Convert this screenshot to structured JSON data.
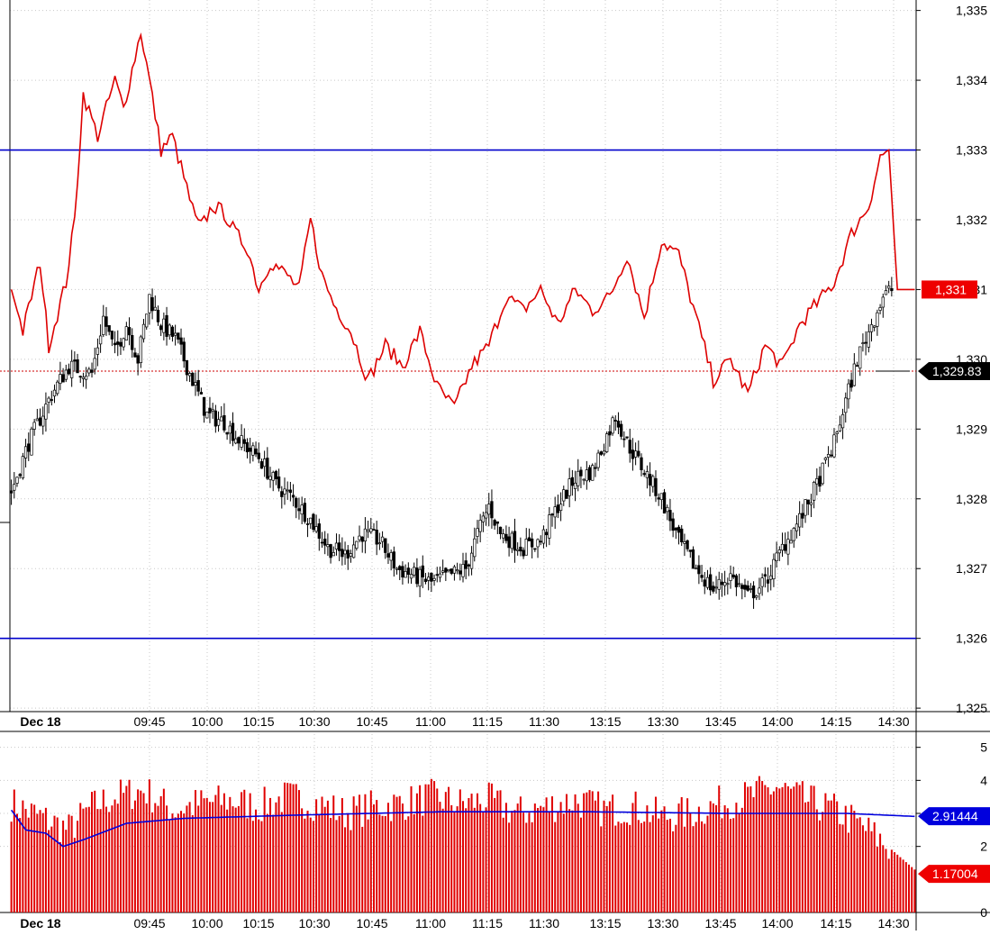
{
  "chart_data": [
    {
      "type": "candlestick",
      "panel": "price",
      "title": "",
      "xlabel": "",
      "ylabel": "",
      "ylim": [
        1324.95,
        1335.15
      ],
      "yticks": [
        "1,325",
        "1,326",
        "1,327",
        "1,328",
        "1,329",
        "1,330",
        "1,331",
        "1,332",
        "1,333",
        "1,334",
        "1,335"
      ],
      "ytick_values": [
        1325,
        1326,
        1327,
        1328,
        1329,
        1330,
        1331,
        1332,
        1333,
        1334,
        1335
      ],
      "xticks": [
        "Dec 18",
        "09:45",
        "10:00",
        "10:15",
        "10:30",
        "10:45",
        "11:00",
        "11:15",
        "11:30",
        "13:15",
        "13:30",
        "13:45",
        "14:00",
        "14:15",
        "14:30"
      ],
      "grid": true,
      "candle_anchors": [
        [
          0,
          1328.1
        ],
        [
          6,
          1328.8
        ],
        [
          14,
          1329.5
        ],
        [
          20,
          1329.9
        ],
        [
          28,
          1329.8
        ],
        [
          32,
          1330.6
        ],
        [
          36,
          1330.1
        ],
        [
          40,
          1330.5
        ],
        [
          44,
          1330.0
        ],
        [
          48,
          1330.9
        ],
        [
          52,
          1330.5
        ],
        [
          57,
          1330.3
        ],
        [
          62,
          1329.8
        ],
        [
          68,
          1329.2
        ],
        [
          74,
          1329.1
        ],
        [
          80,
          1328.8
        ],
        [
          86,
          1328.6
        ],
        [
          92,
          1328.2
        ],
        [
          98,
          1328.0
        ],
        [
          104,
          1327.7
        ],
        [
          110,
          1327.3
        ],
        [
          116,
          1327.2
        ],
        [
          122,
          1327.5
        ],
        [
          128,
          1327.4
        ],
        [
          134,
          1327.0
        ],
        [
          140,
          1326.9
        ],
        [
          146,
          1326.8
        ],
        [
          152,
          1326.9
        ],
        [
          158,
          1327.0
        ],
        [
          162,
          1327.5
        ],
        [
          166,
          1327.9
        ],
        [
          170,
          1327.5
        ],
        [
          174,
          1327.4
        ],
        [
          178,
          1327.3
        ],
        [
          184,
          1327.4
        ],
        [
          190,
          1327.9
        ],
        [
          196,
          1328.3
        ],
        [
          202,
          1328.4
        ],
        [
          206,
          1328.8
        ],
        [
          210,
          1329.2
        ],
        [
          214,
          1328.8
        ],
        [
          220,
          1328.4
        ],
        [
          226,
          1328.0
        ],
        [
          232,
          1327.4
        ],
        [
          238,
          1327.0
        ],
        [
          244,
          1326.7
        ],
        [
          250,
          1326.9
        ],
        [
          256,
          1326.6
        ],
        [
          262,
          1326.8
        ],
        [
          268,
          1327.3
        ],
        [
          274,
          1327.7
        ],
        [
          280,
          1328.2
        ],
        [
          286,
          1328.8
        ],
        [
          290,
          1329.4
        ],
        [
          294,
          1330.0
        ],
        [
          298,
          1330.4
        ],
        [
          303,
          1330.9
        ],
        [
          306,
          1331.0
        ]
      ],
      "reference_lines": [
        {
          "name": "upper-level",
          "value": 1333.0,
          "color": "#0000cc"
        },
        {
          "name": "lower-level",
          "value": 1326.0,
          "color": "#0000cc"
        },
        {
          "name": "last-price",
          "value": 1329.83,
          "color": "#cc0000",
          "style": "dotted"
        }
      ],
      "overlay_series": {
        "name": "",
        "color": "#dd0000",
        "scale": "separate",
        "anchors": [
          [
            0,
            1331.0
          ],
          [
            4,
            1330.4
          ],
          [
            10,
            1331.4
          ],
          [
            13,
            1330.2
          ],
          [
            19,
            1331.1
          ],
          [
            22,
            1332.0
          ],
          [
            25,
            1333.8
          ],
          [
            30,
            1333.2
          ],
          [
            36,
            1334.0
          ],
          [
            39,
            1333.6
          ],
          [
            45,
            1334.7
          ],
          [
            48,
            1334.0
          ],
          [
            52,
            1333.0
          ],
          [
            56,
            1333.2
          ],
          [
            60,
            1332.6
          ],
          [
            64,
            1332.0
          ],
          [
            66,
            1331.9
          ],
          [
            70,
            1332.2
          ],
          [
            74,
            1332.1
          ],
          [
            78,
            1331.8
          ],
          [
            82,
            1331.6
          ],
          [
            86,
            1331.0
          ],
          [
            90,
            1331.4
          ],
          [
            96,
            1331.2
          ],
          [
            100,
            1331.0
          ],
          [
            104,
            1332.0
          ],
          [
            108,
            1331.2
          ],
          [
            112,
            1330.8
          ],
          [
            118,
            1330.4
          ],
          [
            124,
            1329.7
          ],
          [
            130,
            1330.2
          ],
          [
            136,
            1329.9
          ],
          [
            142,
            1330.4
          ],
          [
            148,
            1329.6
          ],
          [
            154,
            1329.3
          ],
          [
            160,
            1329.9
          ],
          [
            166,
            1330.2
          ],
          [
            172,
            1330.9
          ],
          [
            178,
            1330.7
          ],
          [
            184,
            1331.0
          ],
          [
            190,
            1330.5
          ],
          [
            196,
            1331.0
          ],
          [
            202,
            1330.7
          ],
          [
            208,
            1330.9
          ],
          [
            214,
            1331.5
          ],
          [
            220,
            1330.6
          ],
          [
            226,
            1331.7
          ],
          [
            232,
            1331.5
          ],
          [
            238,
            1330.6
          ],
          [
            244,
            1329.7
          ],
          [
            250,
            1330.0
          ],
          [
            256,
            1329.5
          ],
          [
            262,
            1330.2
          ],
          [
            268,
            1329.9
          ],
          [
            274,
            1330.5
          ],
          [
            280,
            1330.8
          ],
          [
            286,
            1331.1
          ],
          [
            292,
            1331.8
          ],
          [
            298,
            1332.2
          ],
          [
            302,
            1332.9
          ],
          [
            305,
            1333.0
          ],
          [
            308,
            1331.0
          ],
          [
            314,
            1331.0
          ]
        ]
      },
      "price_label": "1,331",
      "price_label_color": "#ee0000",
      "last_label": "1,329.83",
      "last_label_color": "#000000"
    },
    {
      "type": "bar",
      "panel": "volume",
      "title": "",
      "xlabel": "",
      "ylabel": "",
      "ylim": [
        0,
        5.4
      ],
      "yticks": [
        "0",
        "2",
        "3",
        "4",
        "5"
      ],
      "ytick_values": [
        0,
        2,
        3,
        4,
        5
      ],
      "xticks": [
        "Dec 18",
        "09:45",
        "10:00",
        "10:15",
        "10:30",
        "10:45",
        "11:00",
        "11:15",
        "11:30",
        "13:15",
        "13:30",
        "13:45",
        "14:00",
        "14:15",
        "14:30"
      ],
      "bar_color": "#e00000",
      "bar_anchors": [
        [
          0,
          3.3
        ],
        [
          10,
          2.9
        ],
        [
          20,
          2.5
        ],
        [
          28,
          3.2
        ],
        [
          36,
          3.5
        ],
        [
          46,
          3.7
        ],
        [
          56,
          3.1
        ],
        [
          66,
          3.3
        ],
        [
          76,
          3.4
        ],
        [
          86,
          3.2
        ],
        [
          96,
          3.5
        ],
        [
          106,
          3.3
        ],
        [
          116,
          3.0
        ],
        [
          126,
          3.2
        ],
        [
          136,
          3.3
        ],
        [
          146,
          3.5
        ],
        [
          156,
          3.3
        ],
        [
          166,
          3.4
        ],
        [
          176,
          3.0
        ],
        [
          186,
          3.2
        ],
        [
          196,
          3.4
        ],
        [
          206,
          3.1
        ],
        [
          216,
          3.2
        ],
        [
          226,
          2.9
        ],
        [
          236,
          3.0
        ],
        [
          246,
          3.3
        ],
        [
          256,
          3.5
        ],
        [
          266,
          3.8
        ],
        [
          276,
          3.4
        ],
        [
          286,
          3.1
        ],
        [
          296,
          2.6
        ],
        [
          306,
          1.9
        ],
        [
          314,
          1.3
        ]
      ],
      "moving_average": {
        "name": "",
        "color": "#0000dd",
        "anchors": [
          [
            0,
            3.1
          ],
          [
            5,
            2.5
          ],
          [
            12,
            2.4
          ],
          [
            18,
            2.0
          ],
          [
            25,
            2.2
          ],
          [
            40,
            2.7
          ],
          [
            60,
            2.85
          ],
          [
            100,
            2.95
          ],
          [
            150,
            3.05
          ],
          [
            200,
            3.05
          ],
          [
            250,
            3.0
          ],
          [
            290,
            3.0
          ],
          [
            314,
            2.91
          ]
        ]
      },
      "ma_label": "2.91444",
      "ma_label_color": "#0000dd",
      "volume_label": "1.17004",
      "volume_label_color": "#ee0000"
    }
  ]
}
